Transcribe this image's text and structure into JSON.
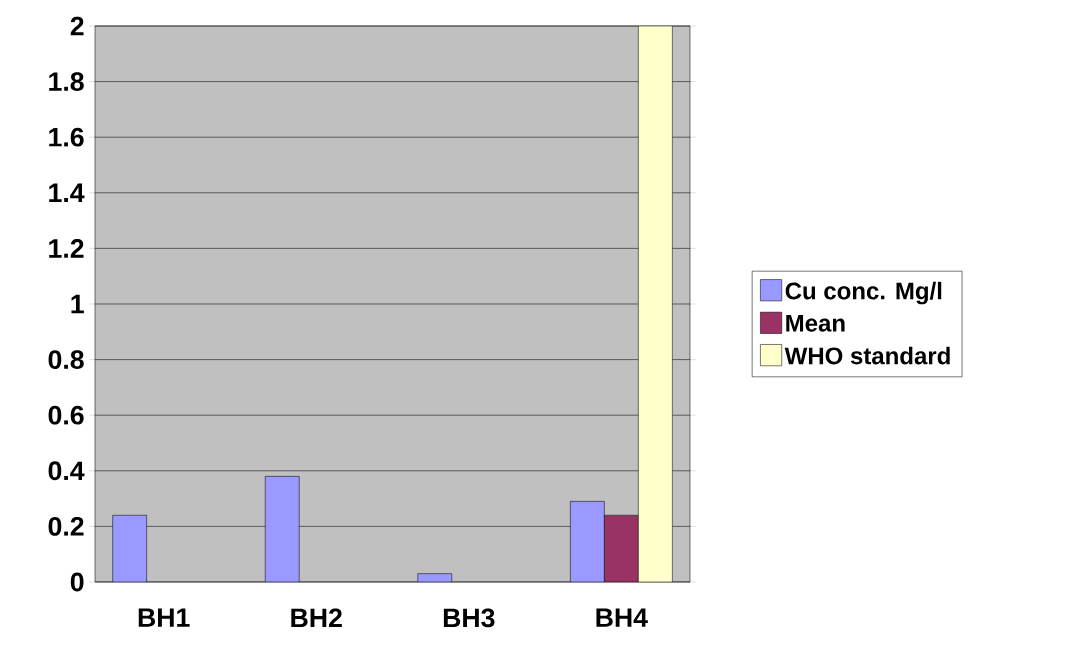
{
  "chart_data": {
    "type": "bar",
    "categories": [
      "BH1",
      "BH2",
      "BH3",
      "BH4"
    ],
    "series": [
      {
        "name": "Cu conc. Mg/l",
        "color": "#9999ff",
        "values": [
          0.24,
          0.38,
          0.03,
          0.29
        ]
      },
      {
        "name": "Mean",
        "color": "#993366",
        "values": [
          null,
          null,
          null,
          0.24
        ]
      },
      {
        "name": "WHO standard",
        "color": "#ffffcc",
        "values": [
          null,
          null,
          null,
          2.0
        ]
      }
    ],
    "ylim": [
      0,
      2
    ],
    "yticks": [
      0,
      0.2,
      0.4,
      0.6,
      0.8,
      1,
      1.2,
      1.4,
      1.6,
      1.8,
      2
    ],
    "grid": "y",
    "legend": "right"
  }
}
